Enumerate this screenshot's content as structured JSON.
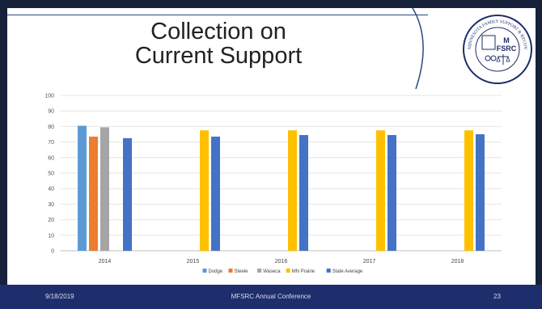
{
  "slide": {
    "title_line1": "Collection on",
    "title_line2": "Current Support",
    "footer_date": "9/18/2019",
    "footer_conference": "MFSRC Annual Conference",
    "footer_page": "23",
    "logo": {
      "ring_text": "MINNESOTA FAMILY SUPPORT & RECOVERY COUNCIL",
      "emblem_top": "M",
      "emblem_bottom": "FSRC"
    }
  },
  "colors": {
    "frame": "#17213a",
    "footer": "#1e2d6b",
    "Dodge": "#5b9bd5",
    "Steele": "#ed7d31",
    "Waseca": "#a5a5a5",
    "MN Prairie": "#ffc000",
    "State Average": "#4472c4"
  },
  "chart_data": {
    "type": "bar",
    "categories": [
      "2014",
      "2015",
      "2016",
      "2017",
      "2018"
    ],
    "series": [
      {
        "name": "Dodge",
        "values": [
          80.5,
          null,
          null,
          null,
          null
        ]
      },
      {
        "name": "Steele",
        "values": [
          73.5,
          null,
          null,
          null,
          null
        ]
      },
      {
        "name": "Waseca",
        "values": [
          79.5,
          null,
          null,
          null,
          null
        ]
      },
      {
        "name": "MN Prairie",
        "values": [
          null,
          77.5,
          77.5,
          77.5,
          77.5
        ]
      },
      {
        "name": "State Average",
        "values": [
          72.5,
          73.5,
          74.5,
          74.5,
          75
        ]
      }
    ],
    "ylim": [
      0,
      100
    ],
    "yticks": [
      0,
      10,
      20,
      30,
      40,
      50,
      60,
      70,
      80,
      90,
      100
    ],
    "grid": true,
    "legend_position": "bottom"
  }
}
